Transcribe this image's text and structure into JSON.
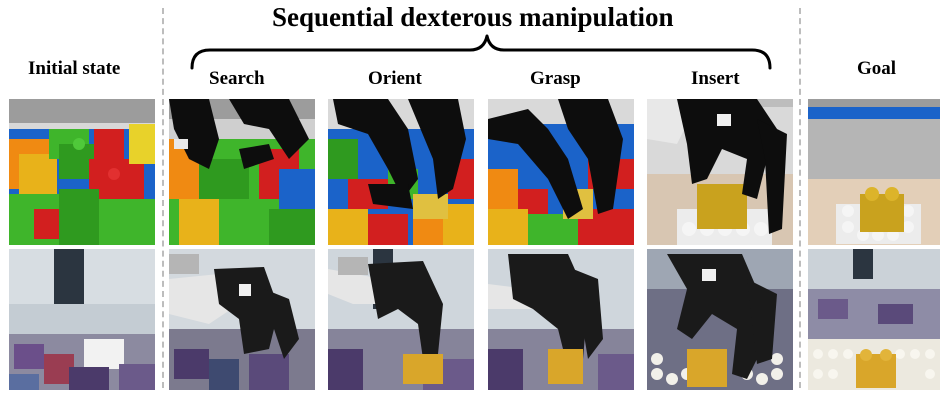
{
  "header": {
    "title": "Sequential dexterous manipulation"
  },
  "columns": {
    "initial": "Initial state",
    "search": "Search",
    "orient": "Orient",
    "grasp": "Grasp",
    "insert": "Insert",
    "goal": "Goal"
  },
  "colors": {
    "red": "#d21f1f",
    "green": "#3fb52b",
    "blue": "#1b63c9",
    "yellow": "#e8b21a",
    "orange": "#f08a12",
    "robot": "#0d0d0d",
    "floor": "#a8a8a8",
    "real_bg": "#cfd6dc"
  }
}
